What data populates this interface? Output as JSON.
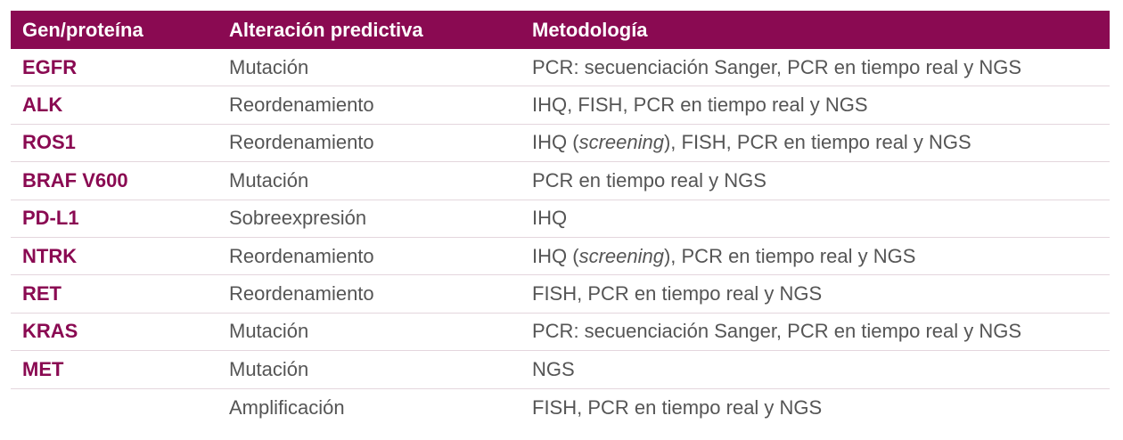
{
  "header": [
    "Gen/proteína",
    "Alteración predictiva",
    "Metodología"
  ],
  "rows": [
    {
      "gene": "EGFR",
      "alteration": "Mutación",
      "method": [
        {
          "text": "PCR: secuenciación Sanger, PCR en tiempo real y NGS"
        }
      ]
    },
    {
      "gene": "ALK",
      "alteration": "Reordenamiento",
      "method": [
        {
          "text": "IHQ, FISH, PCR en tiempo real y NGS"
        }
      ]
    },
    {
      "gene": "ROS1",
      "alteration": "Reordenamiento",
      "method": [
        {
          "text": "IHQ ("
        },
        {
          "text": "screening",
          "italic": true
        },
        {
          "text": "), FISH, PCR en tiempo real y NGS"
        }
      ]
    },
    {
      "gene": "BRAF V600",
      "alteration": "Mutación",
      "method": [
        {
          "text": "PCR en tiempo real y NGS"
        }
      ]
    },
    {
      "gene": "PD-L1",
      "alteration": "Sobreexpresión",
      "method": [
        {
          "text": "IHQ"
        }
      ]
    },
    {
      "gene": "NTRK",
      "alteration": "Reordenamiento",
      "method": [
        {
          "text": "IHQ ("
        },
        {
          "text": "screening",
          "italic": true
        },
        {
          "text": "), PCR en tiempo real y NGS"
        }
      ]
    },
    {
      "gene": "RET",
      "alteration": "Reordenamiento",
      "method": [
        {
          "text": "FISH, PCR en tiempo real y NGS"
        }
      ]
    },
    {
      "gene": "KRAS",
      "alteration": "Mutación",
      "method": [
        {
          "text": "PCR: secuenciación Sanger, PCR en tiempo real y NGS"
        }
      ]
    },
    {
      "gene": "MET",
      "alteration": "Mutación",
      "method": [
        {
          "text": "NGS"
        }
      ]
    },
    {
      "gene": null,
      "alteration": "Amplificación",
      "method": [
        {
          "text": "FISH, PCR en tiempo real y NGS"
        }
      ]
    }
  ]
}
